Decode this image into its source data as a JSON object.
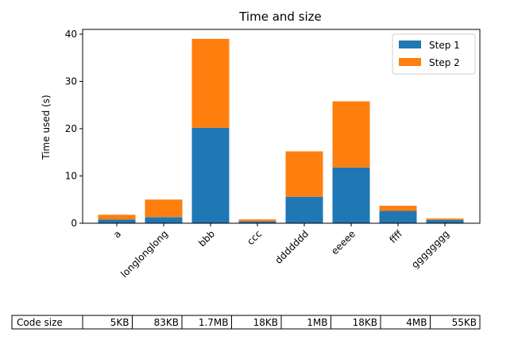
{
  "chart_data": {
    "type": "bar",
    "stacked": true,
    "title": "Time and size",
    "xlabel": "",
    "ylabel": "Time used (s)",
    "ylim": [
      0,
      41
    ],
    "yticks": [
      0,
      10,
      20,
      30,
      40
    ],
    "categories": [
      "a",
      "longlonglong",
      "bbb",
      "ccc",
      "ddddddd",
      "eeeee",
      "ffff",
      "gggggggg"
    ],
    "series": [
      {
        "name": "Step 1",
        "color": "#1f77b4",
        "values": [
          0.8,
          1.3,
          20.2,
          0.4,
          5.6,
          11.8,
          2.6,
          0.7
        ]
      },
      {
        "name": "Step 2",
        "color": "#ff7f0e",
        "values": [
          1.0,
          3.7,
          18.8,
          0.4,
          9.6,
          14.0,
          1.1,
          0.3
        ]
      }
    ],
    "grid": false,
    "legend_position": "top-right",
    "table": {
      "row_label": "Code size",
      "values": [
        "5KB",
        "83KB",
        "1.7MB",
        "18KB",
        "1MB",
        "18KB",
        "4MB",
        "55KB"
      ]
    }
  }
}
